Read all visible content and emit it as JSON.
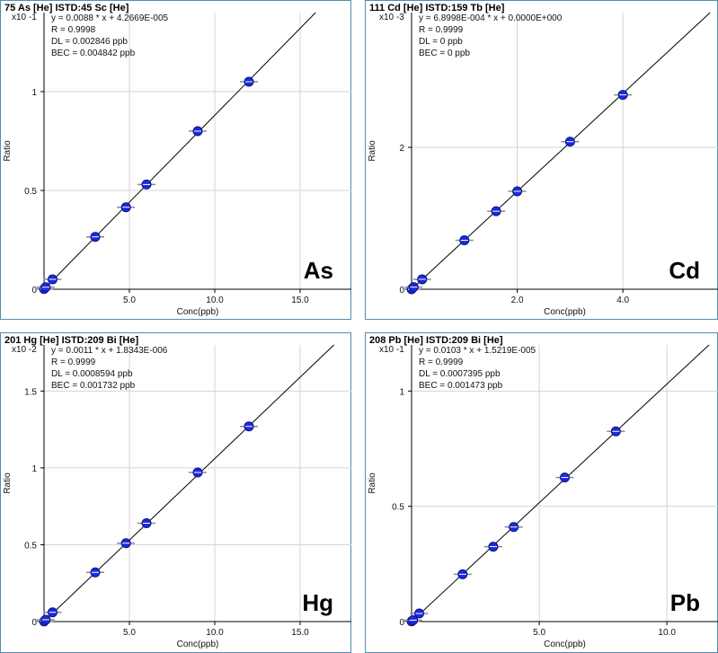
{
  "chart_data": [
    {
      "type": "scatter",
      "title": "75 As [He] ISTD:45 Sc [He]",
      "multiplier": "x10 -1",
      "equation": "y = 0.0088 * x + 4.2669E-005",
      "r": "R = 0.9998",
      "dl": "DL = 0.002846 ppb",
      "bec": "BEC = 0.004842 ppb",
      "element_label": "As",
      "xlabel": "Conc(ppb)",
      "ylabel": "Ratio",
      "xlim": [
        0,
        18
      ],
      "ylim": [
        0,
        1.4
      ],
      "xticks": [
        5.0,
        10.0,
        15.0
      ],
      "xtick_labels": [
        "5.0",
        "10.0",
        "15.0"
      ],
      "yticks": [
        0,
        0.5,
        1
      ],
      "ytick_labels": [
        "0",
        "0.5",
        "1"
      ],
      "fit": {
        "slope": 0.088,
        "intercept": 0.0004
      },
      "x": [
        0,
        0.1,
        0.5,
        3.0,
        4.8,
        6.0,
        9.0,
        12.0
      ],
      "y": [
        0.001,
        0.01,
        0.05,
        0.265,
        0.415,
        0.53,
        0.8,
        1.05
      ],
      "grid": true,
      "marker_color": "#1a2be0"
    },
    {
      "type": "scatter",
      "title": "111 Cd [He] ISTD:159 Tb [He]",
      "multiplier": "x10 -3",
      "equation": "y = 6.8998E-004 * x + 0.0000E+000",
      "r": "R = 0.9999",
      "dl": "DL = 0 ppb",
      "bec": "BEC = 0 ppb",
      "element_label": "Cd",
      "xlabel": "Conc(ppb)",
      "ylabel": "Ratio",
      "xlim": [
        0,
        5.8
      ],
      "ylim": [
        0,
        3.9
      ],
      "xticks": [
        2.0,
        4.0
      ],
      "xtick_labels": [
        "2.0",
        "4.0"
      ],
      "yticks": [
        0,
        2
      ],
      "ytick_labels": [
        "0",
        "2"
      ],
      "fit": {
        "slope": 0.69,
        "intercept": 0
      },
      "x": [
        0,
        0.04,
        0.2,
        1.0,
        1.6,
        2.0,
        3.0,
        4.0
      ],
      "y": [
        0.0,
        0.03,
        0.14,
        0.69,
        1.1,
        1.38,
        2.08,
        2.74
      ],
      "grid": true,
      "marker_color": "#1a2be0"
    },
    {
      "type": "scatter",
      "title": "201 Hg [He] ISTD:209 Bi [He]",
      "multiplier": "x10 -2",
      "equation": "y = 0.0011 * x + 1.8343E-006",
      "r": "R = 0.9999",
      "dl": "DL = 0.0008594 ppb",
      "bec": "BEC = 0.001732 ppb",
      "element_label": "Hg",
      "xlabel": "Conc(ppb)",
      "ylabel": "Ratio",
      "xlim": [
        0,
        18
      ],
      "ylim": [
        0,
        1.8
      ],
      "xticks": [
        5.0,
        10.0,
        15.0
      ],
      "xtick_labels": [
        "5.0",
        "10.0",
        "15.0"
      ],
      "yticks": [
        0,
        0.5,
        1,
        1.5
      ],
      "ytick_labels": [
        "0",
        "0.5",
        "1",
        "1.5"
      ],
      "fit": {
        "slope": 0.106,
        "intercept": 0.0002
      },
      "x": [
        0,
        0.1,
        0.5,
        3.0,
        4.8,
        6.0,
        9.0,
        12.0
      ],
      "y": [
        0.001,
        0.012,
        0.06,
        0.32,
        0.51,
        0.64,
        0.97,
        1.27
      ],
      "grid": true,
      "marker_color": "#1a2be0"
    },
    {
      "type": "scatter",
      "title": "208 Pb [He] ISTD:209 Bi [He]",
      "multiplier": "x10 -1",
      "equation": "y = 0.0103 * x + 1.5219E-005",
      "r": "R = 0.9999",
      "dl": "DL = 0.0007395 ppb",
      "bec": "BEC = 0.001473 ppb",
      "element_label": "Pb",
      "xlabel": "Conc(ppb)",
      "ylabel": "Ratio",
      "xlim": [
        0,
        12
      ],
      "ylim": [
        0,
        1.2
      ],
      "xticks": [
        5.0,
        10.0
      ],
      "xtick_labels": [
        "5.0",
        "10.0"
      ],
      "yticks": [
        0,
        0.5,
        1
      ],
      "ytick_labels": [
        "0",
        "0.5",
        "1"
      ],
      "fit": {
        "slope": 0.103,
        "intercept": 0.0002
      },
      "x": [
        0,
        0.06,
        0.3,
        2.0,
        3.2,
        4.0,
        6.0,
        8.0
      ],
      "y": [
        0.001,
        0.006,
        0.035,
        0.205,
        0.325,
        0.41,
        0.625,
        0.825
      ],
      "grid": true,
      "marker_color": "#1a2be0"
    }
  ]
}
